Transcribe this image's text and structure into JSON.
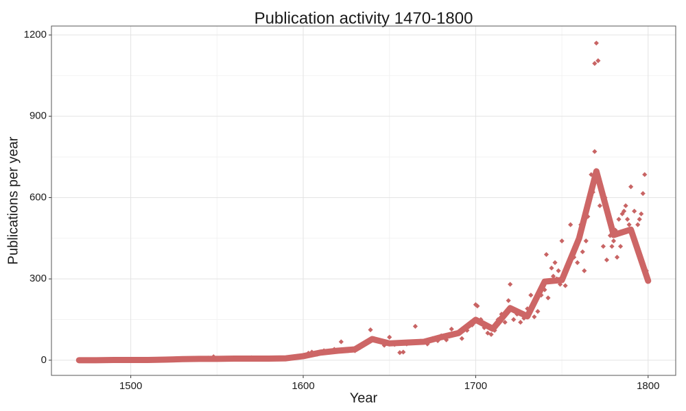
{
  "chart_data": {
    "type": "scatter_line",
    "title": "Publication activity 1470-1800",
    "x_label": "Year",
    "y_label": "Publications per year",
    "xlim": [
      1454,
      1816
    ],
    "ylim": [
      -56,
      1233
    ],
    "xticks": [
      1500,
      1600,
      1700,
      1800
    ],
    "yticks": [
      0,
      300,
      600,
      900,
      1200
    ],
    "grid": true,
    "series": [
      {
        "kind": "points",
        "color": "#c86464",
        "x": [
          1470,
          1475,
          1480,
          1485,
          1490,
          1495,
          1500,
          1505,
          1510,
          1515,
          1520,
          1525,
          1530,
          1535,
          1540,
          1545,
          1548,
          1550,
          1555,
          1560,
          1565,
          1570,
          1575,
          1580,
          1585,
          1590,
          1595,
          1600,
          1603,
          1605,
          1608,
          1612,
          1615,
          1618,
          1622,
          1625,
          1630,
          1633,
          1636,
          1639,
          1641,
          1644,
          1647,
          1650,
          1653,
          1656,
          1658,
          1660,
          1663,
          1665,
          1668,
          1672,
          1675,
          1678,
          1680,
          1683,
          1686,
          1689,
          1692,
          1695,
          1698,
          1700,
          1701,
          1703,
          1705,
          1707,
          1709,
          1711,
          1713,
          1715,
          1717,
          1719,
          1720,
          1722,
          1724,
          1726,
          1728,
          1730,
          1732,
          1734,
          1736,
          1738,
          1740,
          1741,
          1742,
          1743,
          1744,
          1745,
          1746,
          1747,
          1748,
          1749,
          1750,
          1752,
          1753,
          1755,
          1757,
          1758,
          1759,
          1761,
          1762,
          1763,
          1764,
          1765,
          1766,
          1767,
          1768,
          1769,
          1769,
          1770,
          1771,
          1772,
          1774,
          1775,
          1776,
          1777,
          1778,
          1779,
          1780,
          1781,
          1782,
          1783,
          1784,
          1785,
          1786,
          1787,
          1788,
          1789,
          1790,
          1792,
          1794,
          1795,
          1796,
          1797,
          1798,
          1799
        ],
        "values": [
          0,
          0,
          1,
          1,
          2,
          1,
          2,
          1,
          2,
          2,
          3,
          5,
          6,
          4,
          6,
          8,
          13,
          7,
          5,
          6,
          8,
          9,
          8,
          7,
          8,
          7,
          10,
          14,
          26,
          30,
          22,
          35,
          31,
          40,
          68,
          40,
          35,
          47,
          60,
          112,
          80,
          70,
          55,
          85,
          58,
          28,
          30,
          60,
          68,
          125,
          70,
          60,
          80,
          72,
          90,
          75,
          115,
          100,
          80,
          110,
          130,
          205,
          200,
          150,
          120,
          100,
          95,
          110,
          150,
          170,
          140,
          220,
          280,
          150,
          170,
          140,
          155,
          190,
          240,
          160,
          180,
          240,
          260,
          390,
          230,
          290,
          340,
          310,
          360,
          300,
          330,
          280,
          440,
          275,
          350,
          500,
          380,
          410,
          360,
          500,
          400,
          330,
          440,
          530,
          600,
          685,
          620,
          770,
          1095,
          1170,
          1105,
          570,
          420,
          600,
          370,
          520,
          460,
          420,
          440,
          480,
          380,
          520,
          420,
          540,
          550,
          570,
          520,
          500,
          640,
          550,
          500,
          520,
          540,
          615,
          685,
          330
        ]
      },
      {
        "kind": "line",
        "color": "#cd6666",
        "x": [
          1470,
          1480,
          1490,
          1500,
          1510,
          1520,
          1530,
          1540,
          1550,
          1560,
          1570,
          1580,
          1590,
          1600,
          1610,
          1620,
          1630,
          1640,
          1650,
          1660,
          1670,
          1680,
          1690,
          1700,
          1710,
          1720,
          1730,
          1740,
          1750,
          1760,
          1770,
          1780,
          1790,
          1800
        ],
        "values": [
          0,
          0,
          1,
          1,
          1,
          2,
          4,
          5,
          5,
          6,
          6,
          6,
          7,
          15,
          28,
          35,
          40,
          78,
          62,
          65,
          68,
          85,
          100,
          149,
          116,
          192,
          162,
          290,
          296,
          450,
          697,
          462,
          482,
          293
        ]
      }
    ]
  }
}
